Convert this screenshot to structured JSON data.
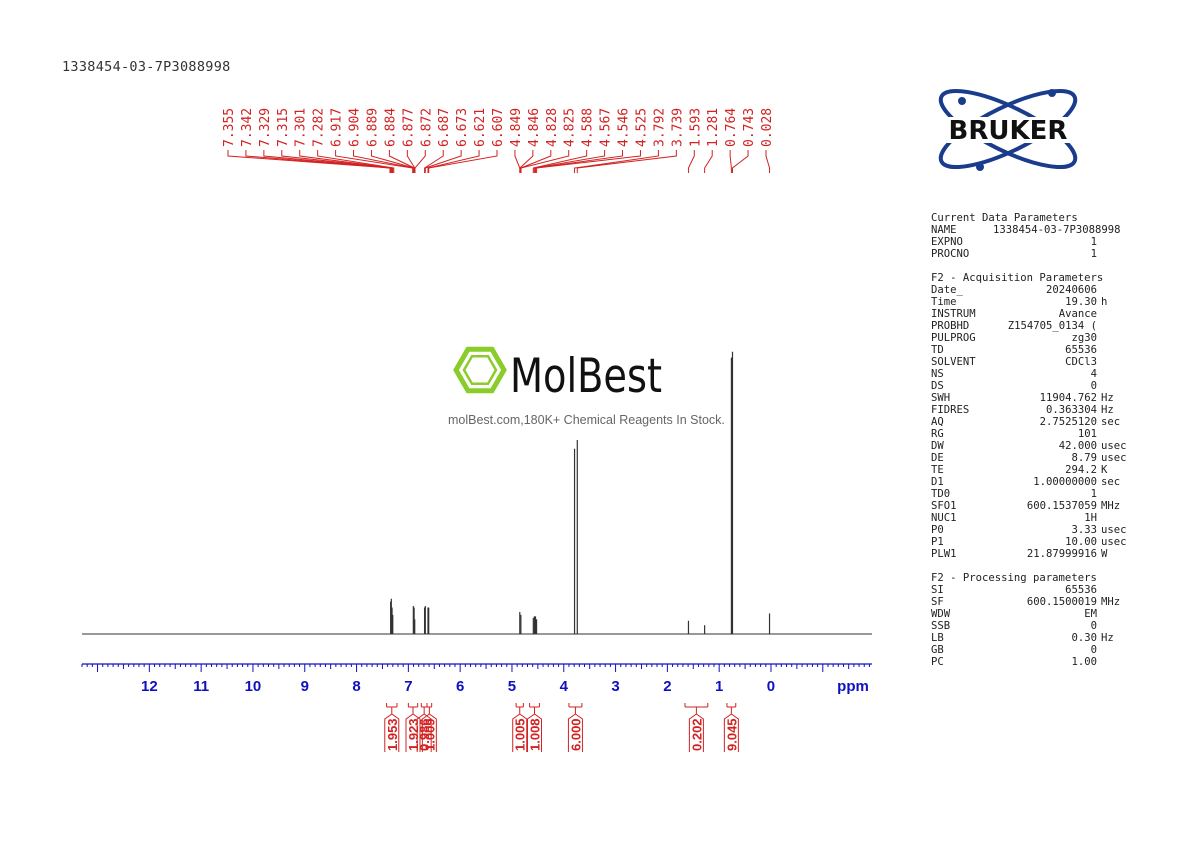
{
  "sample_id": "1338454-03-7P3088998",
  "brand": {
    "logo_text": "BRUKER"
  },
  "watermark": {
    "logo_text": "MolBest",
    "tagline": "molBest.com,180K+ Chemical Reagents In Stock."
  },
  "colors": {
    "peak_labels": "#d22222",
    "axis": "#1010c0",
    "spectrum": "#333333",
    "logo_blue": "#1a3c8c"
  },
  "params": {
    "current": {
      "title": "Current Data Parameters",
      "rows": [
        {
          "k": "NAME",
          "v": "1338454-03-7P3088998",
          "u": ""
        },
        {
          "k": "EXPNO",
          "v": "1",
          "u": ""
        },
        {
          "k": "PROCNO",
          "v": "1",
          "u": ""
        }
      ]
    },
    "acq": {
      "title": "F2 - Acquisition Parameters",
      "rows": [
        {
          "k": "Date_",
          "v": "20240606",
          "u": ""
        },
        {
          "k": "Time",
          "v": "19.30",
          "u": "h"
        },
        {
          "k": "INSTRUM",
          "v": "Avance",
          "u": ""
        },
        {
          "k": "PROBHD",
          "v": "Z154705_0134 (",
          "u": ""
        },
        {
          "k": "PULPROG",
          "v": "zg30",
          "u": ""
        },
        {
          "k": "TD",
          "v": "65536",
          "u": ""
        },
        {
          "k": "SOLVENT",
          "v": "CDCl3",
          "u": ""
        },
        {
          "k": "NS",
          "v": "4",
          "u": ""
        },
        {
          "k": "DS",
          "v": "0",
          "u": ""
        },
        {
          "k": "SWH",
          "v": "11904.762",
          "u": "Hz"
        },
        {
          "k": "FIDRES",
          "v": "0.363304",
          "u": "Hz"
        },
        {
          "k": "AQ",
          "v": "2.7525120",
          "u": "sec"
        },
        {
          "k": "RG",
          "v": "101",
          "u": ""
        },
        {
          "k": "DW",
          "v": "42.000",
          "u": "usec"
        },
        {
          "k": "DE",
          "v": "8.79",
          "u": "usec"
        },
        {
          "k": "TE",
          "v": "294.2",
          "u": "K"
        },
        {
          "k": "D1",
          "v": "1.00000000",
          "u": "sec"
        },
        {
          "k": "TD0",
          "v": "1",
          "u": ""
        },
        {
          "k": "SFO1",
          "v": "600.1537059",
          "u": "MHz"
        },
        {
          "k": "NUC1",
          "v": "1H",
          "u": ""
        },
        {
          "k": "P0",
          "v": "3.33",
          "u": "usec"
        },
        {
          "k": "P1",
          "v": "10.00",
          "u": "usec"
        },
        {
          "k": "PLW1",
          "v": "21.87999916",
          "u": "W"
        }
      ]
    },
    "proc": {
      "title": "F2 - Processing parameters",
      "rows": [
        {
          "k": "SI",
          "v": "65536",
          "u": ""
        },
        {
          "k": "SF",
          "v": "600.1500019",
          "u": "MHz"
        },
        {
          "k": "WDW",
          "v": "EM",
          "u": ""
        },
        {
          "k": "SSB",
          "v": "0",
          "u": ""
        },
        {
          "k": "LB",
          "v": "0.30",
          "u": "Hz"
        },
        {
          "k": "GB",
          "v": "0",
          "u": ""
        },
        {
          "k": "PC",
          "v": "1.00",
          "u": ""
        }
      ]
    }
  },
  "chart_data": {
    "type": "line",
    "x_unit_label": "ppm",
    "xlim": [
      13.3,
      -1.95
    ],
    "x_ticks": [
      12,
      11,
      10,
      9,
      8,
      7,
      6,
      5,
      4,
      3,
      2,
      1,
      0
    ],
    "tick_labels": [
      "12",
      "11",
      "10",
      "9",
      "8",
      "7",
      "6",
      "5",
      "4",
      "3",
      "2",
      "1",
      "0"
    ],
    "peak_labels": [
      "7.355",
      "7.342",
      "7.329",
      "7.315",
      "7.301",
      "7.282",
      "6.917",
      "6.904",
      "6.889",
      "6.884",
      "6.877",
      "6.872",
      "6.687",
      "6.673",
      "6.621",
      "6.607",
      "4.849",
      "4.846",
      "4.828",
      "4.825",
      "4.588",
      "4.567",
      "4.546",
      "4.525",
      "3.792",
      "3.739",
      "1.593",
      "1.281",
      "0.764",
      "0.743",
      "0.028"
    ],
    "peaks": [
      {
        "ppm": 7.342,
        "h": 0.11
      },
      {
        "ppm": 7.329,
        "h": 0.12
      },
      {
        "ppm": 7.315,
        "h": 0.09
      },
      {
        "ppm": 7.301,
        "h": 0.065
      },
      {
        "ppm": 6.904,
        "h": 0.095
      },
      {
        "ppm": 6.889,
        "h": 0.09
      },
      {
        "ppm": 6.877,
        "h": 0.05
      },
      {
        "ppm": 6.687,
        "h": 0.09
      },
      {
        "ppm": 6.673,
        "h": 0.095
      },
      {
        "ppm": 6.621,
        "h": 0.09
      },
      {
        "ppm": 6.607,
        "h": 0.09
      },
      {
        "ppm": 4.849,
        "h": 0.075
      },
      {
        "ppm": 4.828,
        "h": 0.065
      },
      {
        "ppm": 4.588,
        "h": 0.055
      },
      {
        "ppm": 4.567,
        "h": 0.06
      },
      {
        "ppm": 4.546,
        "h": 0.06
      },
      {
        "ppm": 4.525,
        "h": 0.05
      },
      {
        "ppm": 3.792,
        "h": 0.63
      },
      {
        "ppm": 3.739,
        "h": 0.66
      },
      {
        "ppm": 1.593,
        "h": 0.045
      },
      {
        "ppm": 1.281,
        "h": 0.03
      },
      {
        "ppm": 0.764,
        "h": 0.94
      },
      {
        "ppm": 0.743,
        "h": 0.96
      },
      {
        "ppm": 0.028,
        "h": 0.07
      }
    ],
    "integrals": [
      {
        "from": 7.42,
        "to": 7.22,
        "value": "1.953"
      },
      {
        "from": 7.0,
        "to": 6.82,
        "value": "1.923"
      },
      {
        "from": 6.75,
        "to": 6.64,
        "value": "0.986"
      },
      {
        "from": 6.64,
        "to": 6.55,
        "value": "1.009"
      },
      {
        "from": 4.92,
        "to": 4.78,
        "value": "1.005"
      },
      {
        "from": 4.66,
        "to": 4.47,
        "value": "1.008"
      },
      {
        "from": 3.9,
        "to": 3.65,
        "value": "6.000"
      },
      {
        "from": 1.66,
        "to": 1.22,
        "value": "0.202"
      },
      {
        "from": 0.85,
        "to": 0.68,
        "value": "9.045"
      }
    ]
  }
}
